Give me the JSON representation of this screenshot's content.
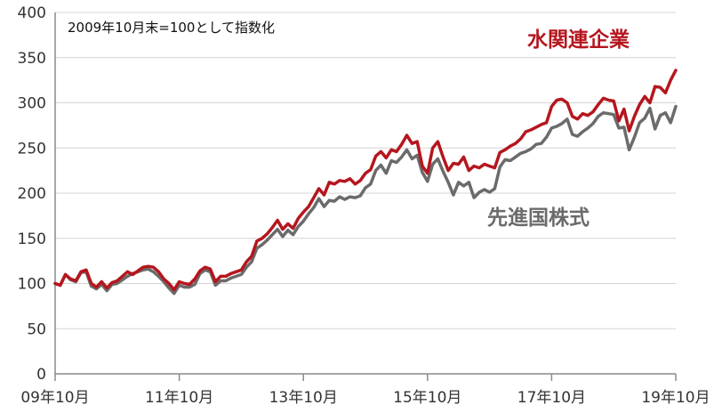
{
  "chart_data": {
    "type": "line",
    "annotation": "2009年10月末=100として指数化",
    "y_ticks": [
      "0",
      "50",
      "100",
      "150",
      "200",
      "250",
      "300",
      "350",
      "400"
    ],
    "x_ticks": [
      "09年10月",
      "11年10月",
      "13年10月",
      "15年10月",
      "17年10月",
      "19年10月"
    ],
    "ylim": [
      0,
      400
    ],
    "grid": true,
    "x": [
      "2009-10",
      "2009-11",
      "2009-12",
      "2010-01",
      "2010-02",
      "2010-03",
      "2010-04",
      "2010-05",
      "2010-06",
      "2010-07",
      "2010-08",
      "2010-09",
      "2010-10",
      "2010-11",
      "2010-12",
      "2011-01",
      "2011-02",
      "2011-03",
      "2011-04",
      "2011-05",
      "2011-06",
      "2011-07",
      "2011-08",
      "2011-09",
      "2011-10",
      "2011-11",
      "2011-12",
      "2012-01",
      "2012-02",
      "2012-03",
      "2012-04",
      "2012-05",
      "2012-06",
      "2012-07",
      "2012-08",
      "2012-09",
      "2012-10",
      "2012-11",
      "2012-12",
      "2013-01",
      "2013-02",
      "2013-03",
      "2013-04",
      "2013-05",
      "2013-06",
      "2013-07",
      "2013-08",
      "2013-09",
      "2013-10",
      "2013-11",
      "2013-12",
      "2014-01",
      "2014-02",
      "2014-03",
      "2014-04",
      "2014-05",
      "2014-06",
      "2014-07",
      "2014-08",
      "2014-09",
      "2014-10",
      "2014-11",
      "2014-12",
      "2015-01",
      "2015-02",
      "2015-03",
      "2015-04",
      "2015-05",
      "2015-06",
      "2015-07",
      "2015-08",
      "2015-09",
      "2015-10",
      "2015-11",
      "2015-12",
      "2016-01",
      "2016-02",
      "2016-03",
      "2016-04",
      "2016-05",
      "2016-06",
      "2016-07",
      "2016-08",
      "2016-09",
      "2016-10",
      "2016-11",
      "2016-12",
      "2017-01",
      "2017-02",
      "2017-03",
      "2017-04",
      "2017-05",
      "2017-06",
      "2017-07",
      "2017-08",
      "2017-09",
      "2017-10",
      "2017-11",
      "2017-12",
      "2018-01",
      "2018-02",
      "2018-03",
      "2018-04",
      "2018-05",
      "2018-06",
      "2018-07",
      "2018-08",
      "2018-09",
      "2018-10",
      "2018-11",
      "2018-12",
      "2019-01",
      "2019-02",
      "2019-03",
      "2019-04",
      "2019-05",
      "2019-06",
      "2019-07",
      "2019-08",
      "2019-09",
      "2019-10"
    ],
    "series": [
      {
        "name": "水関連企業",
        "color": "#b5161e",
        "values": [
          100,
          98,
          110,
          105,
          103,
          113,
          115,
          100,
          96,
          102,
          95,
          101,
          103,
          108,
          113,
          110,
          114,
          118,
          119,
          118,
          113,
          105,
          100,
          93,
          102,
          100,
          99,
          105,
          114,
          118,
          116,
          102,
          108,
          108,
          111,
          113,
          115,
          124,
          130,
          147,
          150,
          155,
          162,
          170,
          160,
          166,
          161,
          172,
          179,
          185,
          195,
          205,
          198,
          212,
          210,
          214,
          213,
          216,
          210,
          214,
          222,
          226,
          241,
          246,
          239,
          248,
          246,
          254,
          264,
          255,
          257,
          230,
          222,
          250,
          257,
          240,
          225,
          233,
          232,
          240,
          225,
          230,
          228,
          232,
          230,
          228,
          245,
          248,
          252,
          255,
          260,
          268,
          270,
          273,
          276,
          278,
          296,
          303,
          304,
          300,
          285,
          282,
          288,
          286,
          290,
          298,
          305,
          303,
          302,
          280,
          293,
          269,
          285,
          298,
          307,
          300,
          318,
          317,
          311,
          325,
          336
        ]
      },
      {
        "name": "先進国株式",
        "color": "#6b6b6b",
        "values": [
          100,
          98,
          110,
          104,
          102,
          112,
          113,
          97,
          94,
          99,
          92,
          99,
          100,
          104,
          108,
          111,
          113,
          115,
          116,
          113,
          108,
          102,
          95,
          89,
          98,
          96,
          96,
          99,
          111,
          115,
          113,
          98,
          103,
          103,
          106,
          108,
          110,
          118,
          124,
          139,
          143,
          148,
          154,
          160,
          152,
          159,
          154,
          163,
          169,
          177,
          184,
          194,
          185,
          192,
          191,
          196,
          193,
          196,
          195,
          197,
          206,
          210,
          225,
          231,
          222,
          236,
          234,
          240,
          248,
          238,
          242,
          223,
          213,
          232,
          238,
          224,
          212,
          198,
          212,
          208,
          212,
          195,
          201,
          204,
          201,
          205,
          229,
          237,
          236,
          240,
          244,
          246,
          249,
          254,
          255,
          262,
          272,
          274,
          277,
          282,
          265,
          263,
          268,
          272,
          277,
          285,
          289,
          288,
          287,
          272,
          273,
          248,
          262,
          278,
          283,
          294,
          271,
          286,
          289,
          278,
          296
        ]
      }
    ]
  }
}
